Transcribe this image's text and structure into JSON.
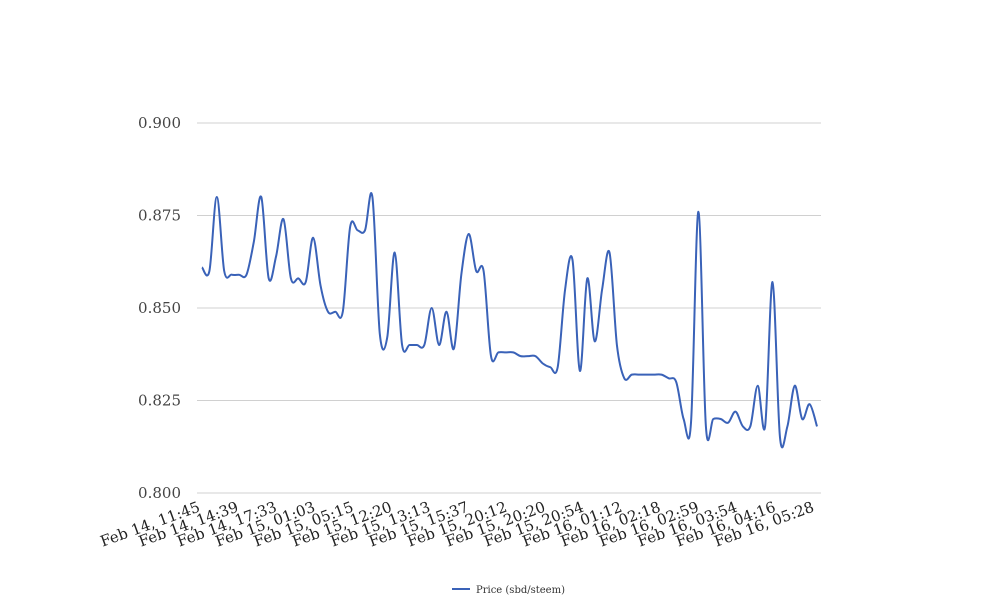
{
  "chart_data": {
    "type": "line",
    "title": "",
    "xlabel": "",
    "ylabel": "",
    "ylim": [
      0.8,
      0.9
    ],
    "yticks": [
      "0.800",
      "0.825",
      "0.850",
      "0.875",
      "0.900"
    ],
    "grid": "horizontal",
    "legend_position": "bottom",
    "x_tick_labels": [
      "Feb 14, 11:45",
      "Feb 14, 14:39",
      "Feb 14, 17:33",
      "Feb 15, 01:03",
      "Feb 15, 05:15",
      "Feb 15, 12:20",
      "Feb 15, 13:13",
      "Feb 15, 15:37",
      "Feb 15, 20:12",
      "Feb 15, 20:20",
      "Feb 15, 20:54",
      "Feb 16, 01:12",
      "Feb 16, 02:18",
      "Feb 16, 02:59",
      "Feb 16, 03:54",
      "Feb 16, 04:16",
      "Feb 16, 05:28"
    ],
    "series": [
      {
        "name": "Price (sbd/steem)",
        "color": "#3a62b8",
        "values": [
          0.861,
          0.86,
          0.88,
          0.86,
          0.859,
          0.859,
          0.859,
          0.868,
          0.88,
          0.858,
          0.864,
          0.874,
          0.858,
          0.858,
          0.857,
          0.869,
          0.856,
          0.849,
          0.849,
          0.849,
          0.872,
          0.871,
          0.871,
          0.88,
          0.843,
          0.842,
          0.865,
          0.84,
          0.84,
          0.84,
          0.84,
          0.85,
          0.84,
          0.849,
          0.839,
          0.859,
          0.87,
          0.86,
          0.86,
          0.837,
          0.838,
          0.838,
          0.838,
          0.837,
          0.837,
          0.837,
          0.835,
          0.834,
          0.834,
          0.855,
          0.863,
          0.833,
          0.858,
          0.841,
          0.855,
          0.865,
          0.84,
          0.831,
          0.832,
          0.832,
          0.832,
          0.832,
          0.832,
          0.831,
          0.83,
          0.82,
          0.819,
          0.876,
          0.818,
          0.82,
          0.82,
          0.819,
          0.822,
          0.818,
          0.818,
          0.829,
          0.818,
          0.857,
          0.815,
          0.818,
          0.829,
          0.82,
          0.824,
          0.818
        ]
      }
    ]
  }
}
